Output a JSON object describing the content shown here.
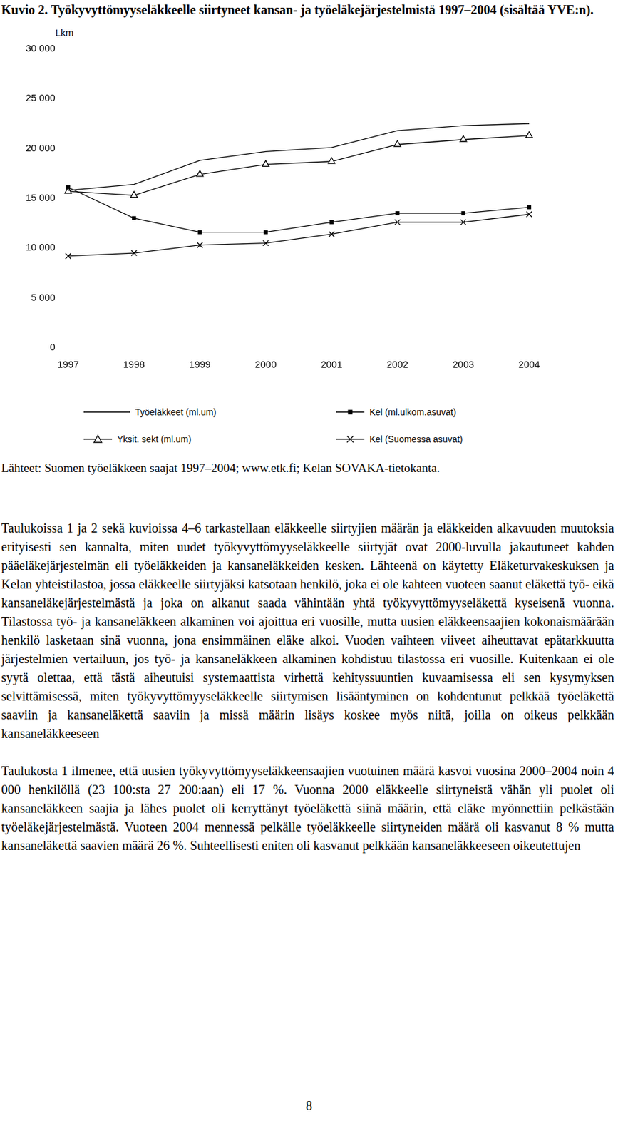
{
  "chart_data": {
    "type": "line",
    "title": "Kuvio 2. Työkyvyttömyyseläkkeelle siirtyneet kansan- ja työeläkejärjestelmistä 1997–2004 (sisältää YVE:n).",
    "ylabel": "Lkm",
    "categories": [
      "1997",
      "1998",
      "1999",
      "2000",
      "2001",
      "2002",
      "2003",
      "2004"
    ],
    "series": [
      {
        "name": "Työeläkkeet (ml.um)",
        "color": "#000000",
        "marker": "none",
        "values": [
          15800,
          16400,
          18800,
          19700,
          20100,
          21800,
          22300,
          22500
        ]
      },
      {
        "name": "Yksit. sekt (ml.um)",
        "color": "#000000",
        "marker": "triangle",
        "values": [
          15700,
          15300,
          17400,
          18400,
          18700,
          20400,
          20900,
          21300
        ]
      },
      {
        "name": "Kel (ml.ulkom.asuvat)",
        "color": "#000000",
        "marker": "square",
        "values": [
          16100,
          13000,
          11600,
          11600,
          12600,
          13500,
          13500,
          14100
        ]
      },
      {
        "name": "Kel (Suomessa asuvat)",
        "color": "#000000",
        "marker": "x",
        "values": [
          9200,
          9500,
          10300,
          10500,
          11400,
          12600,
          12600,
          13400
        ]
      }
    ],
    "ylim": [
      0,
      30000
    ],
    "yticks": [
      0,
      {
        "value": 5000,
        "label": "5 000"
      },
      {
        "value": 10000,
        "label": "10 000"
      },
      {
        "value": 15000,
        "label": "15 000"
      },
      {
        "value": 20000,
        "label": "20 000"
      },
      {
        "value": 25000,
        "label": "25 000"
      },
      {
        "value": 30000,
        "label": "30 000"
      }
    ],
    "grid": false,
    "legend": "bottom"
  },
  "document": {
    "source": "Lähteet: Suomen työeläkkeen saajat 1997–2004; www.etk.fi; Kelan SOVAKA-tietokanta.",
    "paragraphs": [
      "Taulukoissa 1 ja 2 sekä kuvioissa 4–6 tarkastellaan eläkkeelle siirtyjien määrän ja eläkkeiden alkavuuden muutoksia erityisesti sen kannalta, miten uudet työkyvyttömyyseläkkeelle siirtyjät ovat 2000-luvulla jakautuneet kahden pääeläkejärjestelmän eli työeläkkeiden ja kansaneläkkeiden kesken. Lähteenä on käytetty Eläketurvakeskuksen ja Kelan yhteistilastoa, jossa eläkkeelle siirtyjäksi katsotaan henkilö, joka ei ole kahteen vuoteen saanut eläkettä työ- eikä kansaneläkejärjestelmästä ja joka on alkanut saada vähintään yhtä työkyvyttömyyseläkettä kyseisenä vuonna. Tilastossa työ- ja kansaneläkkeen alkaminen voi ajoittua eri vuosille, mutta uusien eläkkeensaajien kokonaismäärään henkilö lasketaan sinä vuonna, jona ensimmäinen eläke alkoi. Vuoden vaihteen viiveet aiheuttavat epätarkkuutta järjestelmien vertailuun, jos työ- ja kansaneläkkeen alkaminen kohdistuu tilastossa eri vuosille. Kuitenkaan ei ole syytä olettaa, että tästä aiheutuisi systemaattista virhettä kehityssuuntien kuvaamisessa eli sen kysymyksen selvittämisessä, miten työkyvyttömyyseläkkeelle siirtymisen lisääntyminen on kohdentunut pelkkää työeläkettä saaviin ja kansaneläkettä saaviin ja missä määrin lisäys koskee myös niitä, joilla on oikeus pelkkään kansaneläkkeeseen",
      "Taulukosta 1 ilmenee, että uusien työkyvyttömyyseläkkeensaajien vuotuinen määrä kasvoi vuosina 2000–2004 noin 4 000 henkilöllä (23 100:sta 27 200:aan) eli 17 %. Vuonna 2000 eläkkeelle siirtyneistä vähän yli puolet oli kansaneläkkeen saajia ja lähes puolet oli kerryttänyt työeläkettä siinä määrin, että eläke myönnettiin pelkästään työeläkejärjestelmästä. Vuoteen 2004 mennessä pelkälle työeläkkeelle siirtyneiden määrä oli kasvanut 8 % mutta kansaneläkettä saavien määrä 26 %. Suhteellisesti eniten oli kasvanut pelkkään kansaneläkkeeseen oikeutettujen"
    ],
    "page_number": "8"
  }
}
